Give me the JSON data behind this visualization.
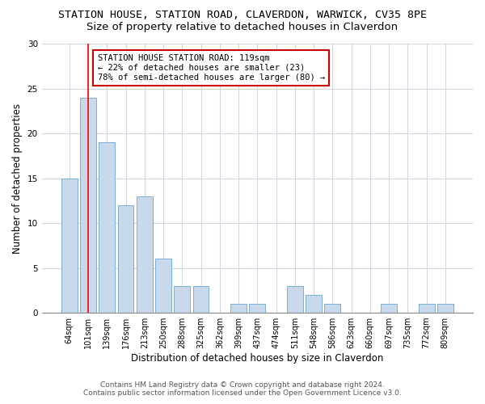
{
  "title1": "STATION HOUSE, STATION ROAD, CLAVERDON, WARWICK, CV35 8PE",
  "title2": "Size of property relative to detached houses in Claverdon",
  "xlabel": "Distribution of detached houses by size in Claverdon",
  "ylabel": "Number of detached properties",
  "categories": [
    "64sqm",
    "101sqm",
    "139sqm",
    "176sqm",
    "213sqm",
    "250sqm",
    "288sqm",
    "325sqm",
    "362sqm",
    "399sqm",
    "437sqm",
    "474sqm",
    "511sqm",
    "548sqm",
    "586sqm",
    "623sqm",
    "660sqm",
    "697sqm",
    "735sqm",
    "772sqm",
    "809sqm"
  ],
  "values": [
    15,
    24,
    19,
    12,
    13,
    6,
    3,
    3,
    0,
    1,
    1,
    0,
    3,
    2,
    1,
    0,
    0,
    1,
    0,
    1,
    1
  ],
  "bar_color": "#c8d9ec",
  "bar_edge_color": "#7aafd4",
  "red_line_x": 1,
  "annotation_text": "STATION HOUSE STATION ROAD: 119sqm\n← 22% of detached houses are smaller (23)\n78% of semi-detached houses are larger (80) →",
  "annotation_box_color": "#ffffff",
  "annotation_box_edge": "#cc0000",
  "ylim": [
    0,
    30
  ],
  "yticks": [
    0,
    5,
    10,
    15,
    20,
    25,
    30
  ],
  "footer1": "Contains HM Land Registry data © Crown copyright and database right 2024.",
  "footer2": "Contains public sector information licensed under the Open Government Licence v3.0.",
  "bg_color": "#ffffff",
  "plot_bg_color": "#ffffff",
  "grid_color": "#d0d8e4",
  "title1_fontsize": 9.5,
  "title2_fontsize": 9.5,
  "tick_fontsize": 7,
  "ylabel_fontsize": 8.5,
  "xlabel_fontsize": 8.5,
  "footer_fontsize": 6.5,
  "ann_fontsize": 7.5
}
